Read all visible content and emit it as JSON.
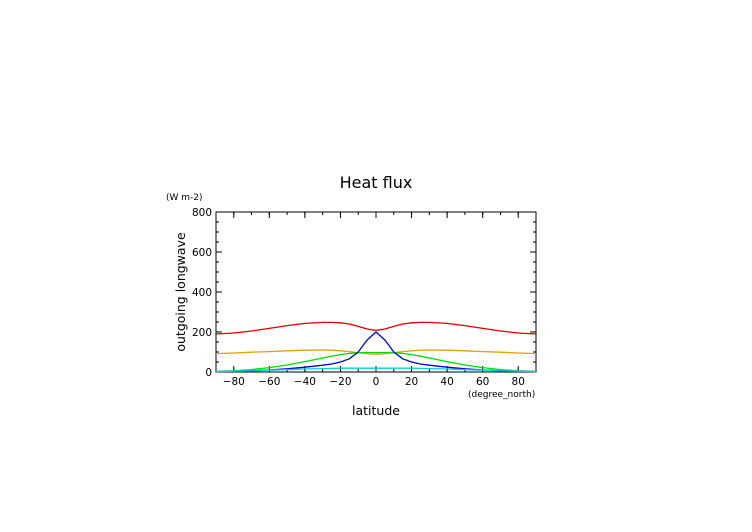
{
  "chart_data": {
    "type": "line",
    "title": "Heat flux",
    "xlabel": "latitude",
    "ylabel": "outgoing longwave",
    "xunits": "(degree_north)",
    "yunits": "(W m-2)",
    "xlim": [
      -90,
      90
    ],
    "ylim": [
      0,
      800
    ],
    "xticks": [
      -80,
      -60,
      -40,
      -20,
      0,
      20,
      40,
      60,
      80
    ],
    "yticks": [
      0,
      200,
      400,
      600,
      800
    ],
    "grid": false,
    "legend": "none",
    "x": [
      -90,
      -80,
      -70,
      -60,
      -50,
      -40,
      -30,
      -25,
      -20,
      -15,
      -10,
      -5,
      0,
      5,
      10,
      15,
      20,
      25,
      30,
      40,
      50,
      60,
      70,
      80,
      90
    ],
    "series": [
      {
        "color": "#e00000",
        "values": [
          190,
          195,
          205,
          218,
          232,
          243,
          248,
          248,
          246,
          240,
          228,
          215,
          208,
          215,
          228,
          240,
          246,
          248,
          248,
          243,
          232,
          218,
          205,
          195,
          190
        ]
      },
      {
        "color": "#e8a000",
        "values": [
          92,
          95,
          99,
          102,
          106,
          109,
          110,
          109,
          106,
          102,
          97,
          92,
          88,
          92,
          97,
          102,
          106,
          109,
          110,
          109,
          106,
          102,
          99,
          95,
          92
        ]
      },
      {
        "color": "#00dd00",
        "values": [
          3,
          6,
          12,
          22,
          35,
          52,
          70,
          79,
          87,
          93,
          96,
          97,
          97,
          97,
          96,
          93,
          87,
          79,
          70,
          52,
          35,
          22,
          12,
          6,
          3
        ]
      },
      {
        "color": "#0000dd",
        "values": [
          2,
          3,
          6,
          10,
          16,
          24,
          34,
          40,
          50,
          66,
          100,
          160,
          200,
          160,
          100,
          66,
          50,
          40,
          34,
          24,
          16,
          10,
          6,
          3,
          2
        ]
      },
      {
        "color": "#00d0d0",
        "values": [
          2,
          4,
          6,
          9,
          12,
          15,
          17,
          18,
          19,
          19,
          19,
          19,
          19,
          19,
          19,
          19,
          19,
          18,
          17,
          15,
          12,
          9,
          6,
          4,
          2
        ]
      }
    ]
  }
}
